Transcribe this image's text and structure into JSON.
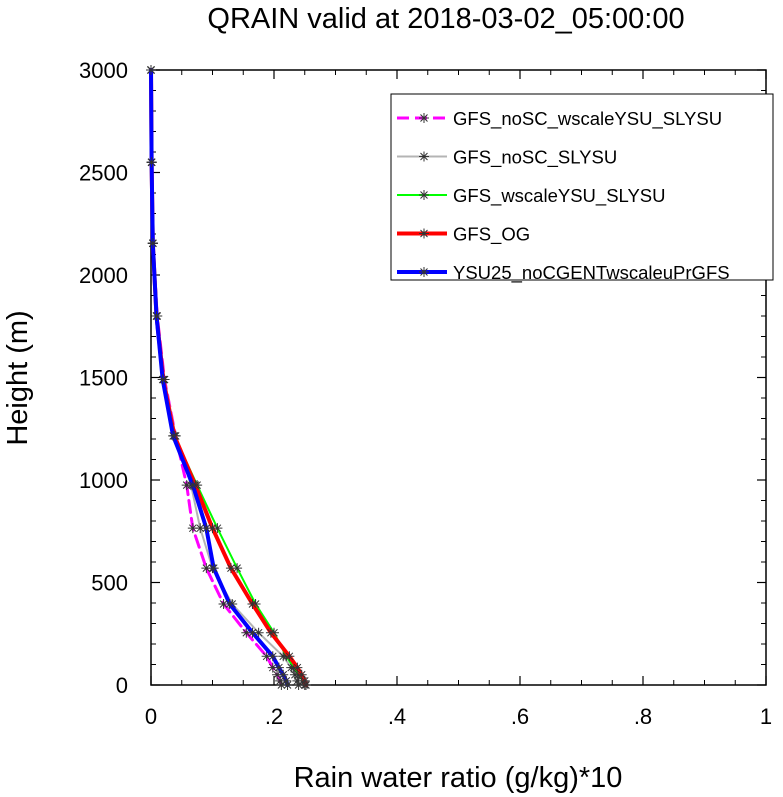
{
  "chart_data": {
    "type": "line",
    "title": "QRAIN valid at 2018-03-02_05:00:00",
    "xlabel": "Rain water ratio (g/kg)*10",
    "ylabel": "Height (m)",
    "xlim": [
      0,
      1
    ],
    "ylim": [
      0,
      3000
    ],
    "xticks": [
      0,
      0.2,
      0.4,
      0.6,
      0.8,
      1
    ],
    "xtick_labels": [
      "0",
      ".2",
      ".4",
      ".6",
      ".8",
      "1"
    ],
    "yticks": [
      0,
      500,
      1000,
      1500,
      2000,
      2500,
      3000
    ],
    "ytick_labels": [
      "0",
      "500",
      "1000",
      "1500",
      "2000",
      "2500",
      "3000"
    ],
    "grid": false,
    "legend_position": "top-right",
    "heights": [
      0,
      20,
      50,
      85,
      140,
      255,
      395,
      570,
      765,
      975,
      1215,
      1490,
      1800,
      2155,
      2550,
      3000
    ],
    "series": [
      {
        "name": "GFS_noSC_wscaleYSU_SLYSU",
        "color": "#ff00ff",
        "dash": "dashed",
        "width": 3,
        "values": [
          0.212,
          0.21,
          0.205,
          0.198,
          0.188,
          0.155,
          0.118,
          0.09,
          0.068,
          0.058,
          0.04,
          0.022,
          0.01,
          0.003,
          0.001,
          0.0
        ]
      },
      {
        "name": "GFS_noSC_SLYSU",
        "color": "#b4b4b4",
        "dash": "solid",
        "width": 2,
        "values": [
          0.24,
          0.238,
          0.234,
          0.228,
          0.215,
          0.175,
          0.132,
          0.1,
          0.08,
          0.065,
          0.04,
          0.022,
          0.01,
          0.003,
          0.001,
          0.0
        ]
      },
      {
        "name": "GFS_wscaleYSU_SLYSU",
        "color": "#00ff00",
        "dash": "solid",
        "width": 2,
        "values": [
          0.25,
          0.247,
          0.24,
          0.232,
          0.22,
          0.2,
          0.17,
          0.14,
          0.108,
          0.075,
          0.038,
          0.02,
          0.009,
          0.003,
          0.001,
          0.0
        ]
      },
      {
        "name": "GFS_OG",
        "color": "#ff0000",
        "dash": "solid",
        "width": 4,
        "values": [
          0.252,
          0.25,
          0.245,
          0.238,
          0.225,
          0.195,
          0.165,
          0.13,
          0.1,
          0.072,
          0.038,
          0.02,
          0.009,
          0.003,
          0.001,
          0.0
        ]
      },
      {
        "name": "YSU25_noCGENTwscaleuPrGFS",
        "color": "#0000ff",
        "dash": "solid",
        "width": 4,
        "values": [
          0.222,
          0.22,
          0.215,
          0.208,
          0.198,
          0.165,
          0.128,
          0.102,
          0.09,
          0.068,
          0.036,
          0.019,
          0.009,
          0.003,
          0.001,
          0.0
        ]
      }
    ]
  }
}
